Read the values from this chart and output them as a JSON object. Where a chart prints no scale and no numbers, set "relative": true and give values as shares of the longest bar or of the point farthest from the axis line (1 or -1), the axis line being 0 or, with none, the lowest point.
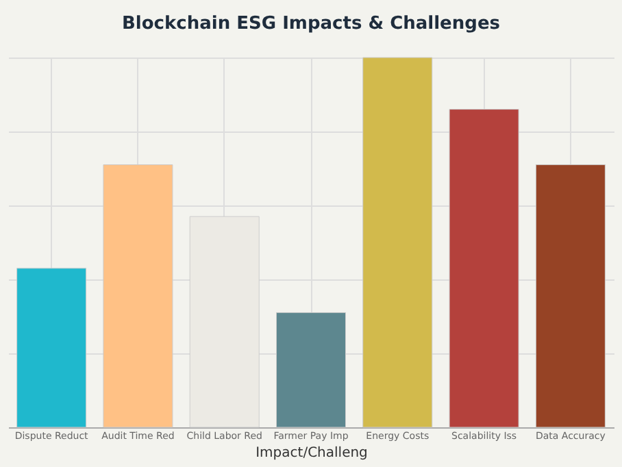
{
  "chart_data": {
    "type": "bar",
    "title": "Blockchain ESG Impacts & Challenges",
    "xlabel": "Impact/Challeng",
    "categories": [
      "Dispute Reduct",
      "Audit Time Red",
      "Child Labor Red",
      "Farmer Pay Imp",
      "Energy Costs",
      "Scalability Iss",
      "Data Accuracy"
    ],
    "values": [
      0.43,
      0.71,
      0.57,
      0.31,
      1,
      0.86,
      0.71
    ],
    "colors": [
      "#1fb8cd",
      "#ffc185",
      "#eceae4",
      "#5d878f",
      "#d2ba4c",
      "#b4413c",
      "#964325"
    ],
    "relative": true,
    "grid": true
  }
}
